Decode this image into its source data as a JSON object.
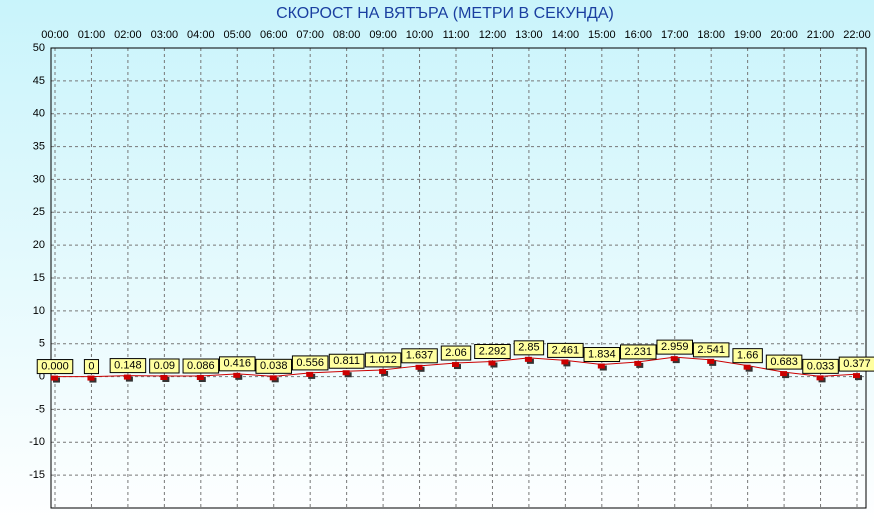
{
  "chart_data": {
    "type": "line",
    "title": "СКОРОСТ НА ВЯТЪРА (МЕТРИ В СЕКУНДА)",
    "categories": [
      "00:00",
      "01:00",
      "02:00",
      "03:00",
      "04:00",
      "05:00",
      "06:00",
      "07:00",
      "08:00",
      "09:00",
      "10:00",
      "11:00",
      "12:00",
      "13:00",
      "14:00",
      "15:00",
      "16:00",
      "17:00",
      "18:00",
      "19:00",
      "20:00",
      "21:00",
      "22:00"
    ],
    "series": [
      {
        "color": "#cc0000",
        "values": [
          0,
          0,
          0.148,
          0.09,
          0.086,
          0.416,
          0.038,
          0.556,
          0.811,
          1.012,
          1.637,
          2.06,
          2.292,
          2.85,
          2.461,
          1.834,
          2.231,
          2.959,
          2.541,
          1.66,
          0.683,
          0.033,
          0.377
        ],
        "value_labels": [
          "0.000",
          "0",
          "0.148",
          "0.09",
          "0.086",
          "0.416",
          "0.038",
          "0.556",
          "0.811",
          "1.012",
          "1.637",
          "2.06",
          "2.292",
          "2.85",
          "2.461",
          "1.834",
          "2.231",
          "2.959",
          "2.541",
          "1.66",
          "0.683",
          "0.033",
          "0.377"
        ]
      }
    ],
    "ylim": [
      -20,
      50
    ],
    "yticks": [
      50,
      45,
      40,
      35,
      30,
      25,
      20,
      15,
      10,
      5,
      0,
      -5,
      -10,
      -15
    ],
    "grid": true
  }
}
